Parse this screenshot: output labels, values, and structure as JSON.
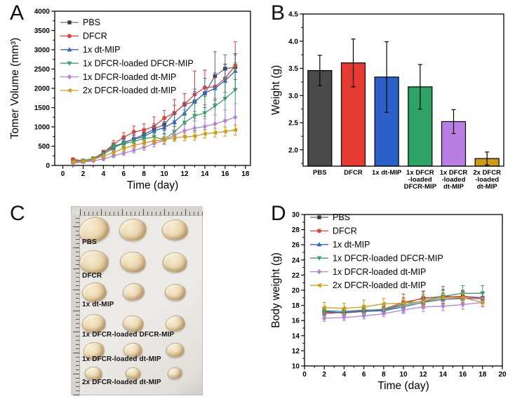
{
  "figure": {
    "panels": [
      {
        "label": "A"
      },
      {
        "label": "B"
      },
      {
        "label": "C"
      },
      {
        "label": "D"
      }
    ]
  },
  "chart_data": [
    {
      "id": "tumor-volume",
      "type": "line",
      "title": "",
      "xlabel": "Time (day)",
      "ylabel": "Tomer Volume (mm³)",
      "xlim": [
        -0.8,
        18.5
      ],
      "ylim": [
        0,
        4000
      ],
      "xticks": [
        0,
        2,
        4,
        6,
        8,
        10,
        12,
        14,
        16,
        18
      ],
      "yticks": [
        0,
        500,
        1000,
        1500,
        2000,
        2500,
        3000,
        3500,
        4000
      ],
      "x_minor": 1,
      "y_minor": 250,
      "legend_position": "top-left",
      "grid": false,
      "x": [
        1,
        2,
        3,
        4,
        5,
        6,
        7,
        8,
        9,
        10,
        11,
        12,
        13,
        14,
        15,
        16,
        17
      ],
      "series": [
        {
          "name": "PBS",
          "color": "#666666",
          "markerColor": "#3a3a3a",
          "marker": "square",
          "values": [
            150,
            110,
            170,
            330,
            500,
            580,
            690,
            800,
            950,
            1060,
            1360,
            1580,
            1660,
            1870,
            2320,
            2510,
            2550
          ],
          "err": [
            30,
            25,
            40,
            60,
            85,
            95,
            105,
            115,
            135,
            155,
            200,
            280,
            260,
            600,
            630,
            360,
            320
          ]
        },
        {
          "name": "DFCR",
          "color": "#e6403a",
          "marker": "circle",
          "values": [
            160,
            120,
            180,
            330,
            550,
            730,
            870,
            920,
            1010,
            1230,
            1360,
            1590,
            1840,
            2020,
            2040,
            2260,
            2590
          ],
          "err": [
            35,
            30,
            45,
            65,
            100,
            120,
            150,
            160,
            250,
            200,
            350,
            270,
            610,
            450,
            310,
            360,
            620
          ]
        },
        {
          "name": "1x dt-MIP",
          "color": "#2f64c8",
          "marker": "triangle-up",
          "values": [
            90,
            100,
            150,
            300,
            450,
            600,
            680,
            750,
            900,
            980,
            1130,
            1360,
            1650,
            1880,
            2000,
            2200,
            2450
          ],
          "err": [
            25,
            25,
            35,
            55,
            80,
            95,
            105,
            115,
            130,
            155,
            230,
            280,
            330,
            380,
            400,
            430,
            450
          ]
        },
        {
          "name": "1x DFCR-loaded DFCR-MIP",
          "color": "#38a169",
          "marker": "triangle-down",
          "values": [
            100,
            130,
            180,
            280,
            480,
            560,
            620,
            700,
            730,
            680,
            870,
            1110,
            1290,
            1360,
            1540,
            1730,
            1960
          ],
          "err": [
            25,
            30,
            40,
            55,
            80,
            90,
            100,
            110,
            120,
            135,
            200,
            330,
            390,
            430,
            480,
            550,
            700
          ]
        },
        {
          "name": "1x DFCR-loaded dt-MIP",
          "color": "#b480e0",
          "marker": "diamond",
          "values": [
            60,
            90,
            120,
            170,
            250,
            320,
            390,
            470,
            570,
            650,
            790,
            900,
            970,
            1010,
            1080,
            1160,
            1250
          ],
          "err": [
            20,
            22,
            28,
            35,
            45,
            55,
            65,
            75,
            90,
            100,
            130,
            160,
            180,
            200,
            230,
            280,
            350
          ]
        },
        {
          "name": "2x DFCR-loaded dt-MIP",
          "color": "#cf9b12",
          "marker": "triangle-left",
          "values": [
            90,
            110,
            160,
            240,
            340,
            440,
            520,
            580,
            640,
            670,
            720,
            740,
            760,
            820,
            850,
            880,
            920
          ],
          "err": [
            22,
            25,
            32,
            40,
            55,
            65,
            75,
            80,
            85,
            90,
            95,
            100,
            105,
            110,
            115,
            120,
            130
          ]
        }
      ]
    },
    {
      "id": "tumor-weight",
      "type": "bar",
      "title": "",
      "xlabel": "",
      "ylabel": "Weight (g)",
      "ylim": [
        1.7,
        4.5
      ],
      "yticks": [
        2.0,
        2.5,
        3.0,
        3.5,
        4.0,
        4.5
      ],
      "ytick_labels": [
        "2.0",
        "2.5",
        "3.0",
        "3.5",
        "4.0",
        "4.5"
      ],
      "y_minor": 0.25,
      "grid": false,
      "categories": [
        [
          "PBS"
        ],
        [
          "DFCR"
        ],
        [
          "1x dt-MIP"
        ],
        [
          "1x DFCR",
          "-loaded",
          "DFCR-MIP"
        ],
        [
          "1x DFCR",
          "-loaded",
          "dt-MIP"
        ],
        [
          "2x DFCR",
          "-loaded",
          "dt-MIP"
        ]
      ],
      "values": [
        3.46,
        3.6,
        3.34,
        3.16,
        2.52,
        1.84
      ],
      "errors": [
        0.28,
        0.44,
        0.65,
        0.41,
        0.22,
        0.12
      ],
      "bar_colors": [
        "#4a4a4a",
        "#e63932",
        "#2b60c8",
        "#2fa266",
        "#b87ee3",
        "#cf9b12"
      ]
    },
    {
      "id": "body-weight",
      "type": "line",
      "title": "",
      "xlabel": "Time (day)",
      "ylabel": "Body weight (g)",
      "xlim": [
        0,
        20
      ],
      "ylim": [
        10,
        30
      ],
      "xticks": [
        0,
        2,
        4,
        6,
        8,
        10,
        12,
        14,
        16,
        18,
        20
      ],
      "yticks": [
        10,
        12,
        14,
        16,
        18,
        20,
        22,
        24,
        26,
        28,
        30
      ],
      "x_minor": 1,
      "y_minor": 1,
      "legend_position": "top-left",
      "grid": false,
      "x": [
        2,
        4,
        6,
        8,
        10,
        12,
        14,
        16,
        18
      ],
      "series": [
        {
          "name": "PBS",
          "color": "#666666",
          "markerColor": "#3a3a3a",
          "marker": "square",
          "values": [
            17.1,
            17.0,
            17.2,
            17.4,
            18.2,
            19.0,
            19.1,
            19.2,
            19.0
          ],
          "err": [
            0.5,
            0.6,
            0.6,
            0.5,
            0.8,
            0.9,
            0.9,
            0.8,
            0.8
          ]
        },
        {
          "name": "DFCR",
          "color": "#e6403a",
          "marker": "circle",
          "values": [
            16.9,
            17.1,
            17.3,
            17.5,
            18.4,
            18.9,
            19.2,
            19.1,
            19.0
          ],
          "err": [
            0.5,
            0.5,
            0.6,
            0.6,
            1.1,
            0.9,
            1.3,
            0.8,
            0.8
          ]
        },
        {
          "name": "1x dt-MIP",
          "color": "#2f64c8",
          "marker": "triangle-up",
          "values": [
            17.2,
            17.0,
            17.2,
            17.3,
            17.8,
            18.4,
            18.8,
            18.9,
            18.9
          ],
          "err": [
            0.5,
            0.5,
            0.5,
            0.5,
            0.7,
            0.8,
            0.8,
            0.8,
            0.7
          ]
        },
        {
          "name": "1x DFCR-loaded DFCR-MIP",
          "color": "#38a169",
          "marker": "triangle-down",
          "values": [
            17.3,
            17.2,
            17.4,
            17.4,
            18.0,
            18.6,
            19.2,
            19.6,
            19.6
          ],
          "err": [
            0.5,
            0.5,
            0.6,
            0.5,
            0.7,
            0.8,
            0.9,
            1.0,
            1.0
          ]
        },
        {
          "name": "1x DFCR-loaded dt-MIP",
          "color": "#b480e0",
          "marker": "diamond",
          "values": [
            16.3,
            16.4,
            16.6,
            16.9,
            17.4,
            17.8,
            17.9,
            18.1,
            18.4
          ],
          "err": [
            0.4,
            0.4,
            0.4,
            0.4,
            0.5,
            0.6,
            0.6,
            0.6,
            0.6
          ]
        },
        {
          "name": "2x DFCR-loaded dt-MIP",
          "color": "#cf9b12",
          "marker": "triangle-left",
          "values": [
            17.7,
            17.6,
            17.8,
            18.2,
            18.3,
            18.5,
            19.0,
            19.0,
            18.4
          ],
          "err": [
            0.7,
            0.7,
            0.9,
            0.7,
            0.6,
            0.7,
            0.7,
            0.6,
            0.5
          ]
        }
      ]
    }
  ],
  "photo_panel": {
    "description": "Excised tumors on paper with rulers, three tumors per group",
    "columns": 3,
    "rows": [
      {
        "label": "PBS",
        "size": 40
      },
      {
        "label": "DFCR",
        "size": 38
      },
      {
        "label": "1x dt-MIP",
        "size": 31
      },
      {
        "label": "1x DFCR-loaded DFCR-MIP",
        "size": 30
      },
      {
        "label": "1x DFCR-loaded dt-MIP",
        "size": 27
      },
      {
        "label": "2x DFCR-loaded dt-MIP",
        "size": 22
      }
    ]
  }
}
